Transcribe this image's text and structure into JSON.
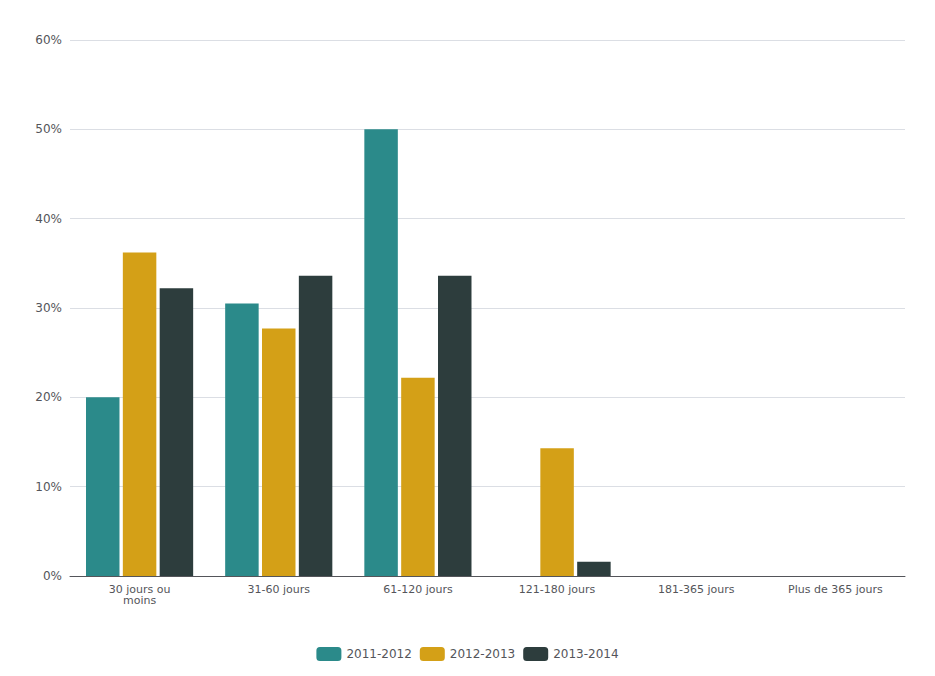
{
  "chart_data": {
    "type": "bar",
    "categories": [
      "30 jours ou\nmoins",
      "31-60 jours",
      "61-120 jours",
      "121-180 jours",
      "181-365 jours",
      "Plus de 365 jours"
    ],
    "series": [
      {
        "name": "2011-2012",
        "color": "#2b8a8a",
        "values": [
          0.2,
          0.305,
          0.5,
          0.0,
          0.0,
          0.0
        ]
      },
      {
        "name": "2012-2013",
        "color": "#d4a017",
        "values": [
          0.362,
          0.277,
          0.222,
          0.143,
          0.0,
          0.0
        ]
      },
      {
        "name": "2013-2014",
        "color": "#2d3d3d",
        "values": [
          0.322,
          0.336,
          0.336,
          0.016,
          0.0,
          0.0
        ]
      }
    ],
    "ylim": [
      0,
      0.6
    ],
    "yticks": [
      {
        "value": 0.0,
        "label": "0%"
      },
      {
        "value": 0.1,
        "label": "10%"
      },
      {
        "value": 0.2,
        "label": "20%"
      },
      {
        "value": 0.3,
        "label": "30%"
      },
      {
        "value": 0.4,
        "label": "40%"
      },
      {
        "value": 0.5,
        "label": "50%"
      },
      {
        "value": 0.6,
        "label": "60%"
      }
    ],
    "grid": true,
    "legend": "bottom"
  }
}
